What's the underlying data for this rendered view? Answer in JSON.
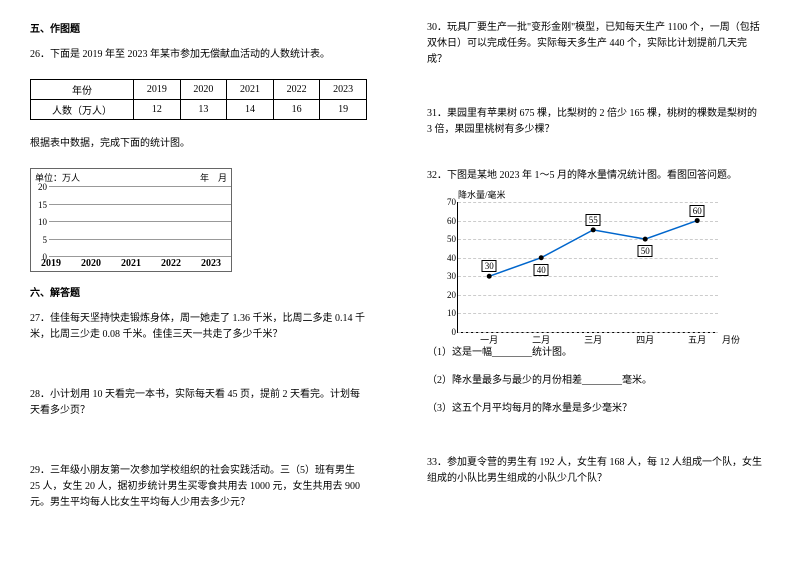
{
  "left": {
    "sec5": "五、作图题",
    "q26_intro": "26．下面是 2019 年至 2023 年某市参加无偿献血活动的人数统计表。",
    "q26_table": {
      "header_year": "年份",
      "years": [
        "2019",
        "2020",
        "2021",
        "2022",
        "2023"
      ],
      "header_count": "人数（万人）",
      "counts": [
        "12",
        "13",
        "14",
        "16",
        "19"
      ]
    },
    "q26_hint": "根据表中数据，完成下面的统计图。",
    "q26_grid": {
      "unit": "单位：万人",
      "date": "年　月",
      "y_ticks": [
        "20",
        "15",
        "10",
        "5",
        "0"
      ],
      "x_years": [
        "2019",
        "2020",
        "2021",
        "2022",
        "2023"
      ]
    },
    "sec6": "六、解答题",
    "q27": "27．佳佳每天坚持快走锻炼身体，周一她走了 1.36 千米，比周二多走 0.14 千米，比周三少走 0.08 千米。佳佳三天一共走了多少千米？",
    "q28": "28．小计划用 10 天看完一本书，实际每天看 45 页，提前 2 天看完。计划每天看多少页？",
    "q29": "29．三年级小朋友第一次参加学校组织的社会实践活动。三（5）班有男生 25 人，女生 20 人，据初步统计男生买零食共用去 1000 元，女生共用去 900 元。男生平均每人比女生平均每人少用去多少元？"
  },
  "right": {
    "q30": "30．玩具厂要生产一批\"变形金刚\"模型，已知每天生产 1100 个，一周（包括双休日）可以完成任务。实际每天多生产 440 个，实际比计划提前几天完成？",
    "q31": "31．果园里有苹果树 675 棵，比梨树的 2 倍少 165 棵，桃树的棵数是梨树的 3 倍，果园里桃树有多少棵？",
    "q32_intro": "32．下图是某地 2023 年 1～5 月的降水量情况统计图。看图回答问题。",
    "q32_chart": {
      "title": "降水量/毫米",
      "month_label": "月份",
      "y_ticks": [
        0,
        10,
        20,
        30,
        40,
        50,
        60,
        70
      ],
      "months": [
        "一月",
        "二月",
        "三月",
        "四月",
        "五月"
      ],
      "values": [
        30,
        40,
        55,
        50,
        60
      ],
      "line_color": "#0066cc",
      "point_color": "#000",
      "bg": "#ffffff"
    },
    "q32_1": "（1）这是一幅________统计图。",
    "q32_2": "（2）降水量最多与最少的月份相差________毫米。",
    "q32_3": "（3）这五个月平均每月的降水量是多少毫米？",
    "q33": "33．参加夏令营的男生有 192 人，女生有 168 人，每 12 人组成一个队，女生组成的小队比男生组成的小队少几个队？"
  }
}
